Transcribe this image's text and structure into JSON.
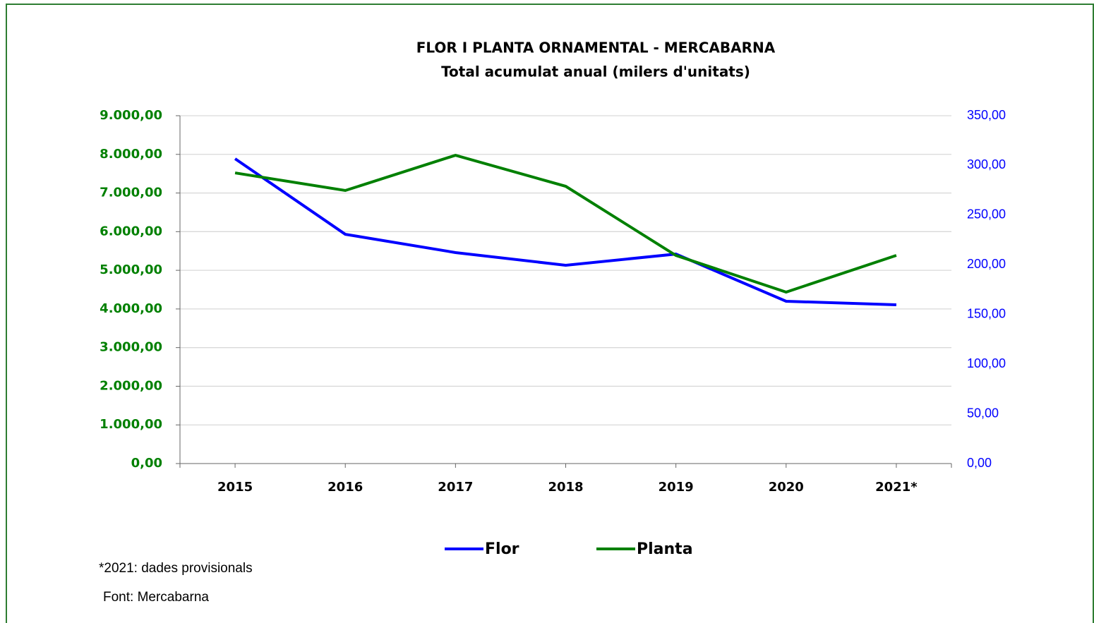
{
  "chart_data": {
    "type": "line",
    "title": "FLOR I PLANTA ORNAMENTAL - MERCABARNA",
    "subtitle": "Total acumulat anual (milers d'unitats)",
    "categories": [
      "2015",
      "2016",
      "2017",
      "2018",
      "2019",
      "2020",
      "2021*"
    ],
    "series": [
      {
        "name": "Flor",
        "color": "#0000ff",
        "axis": "y2",
        "values": [
          306.7,
          230.7,
          212.3,
          199.5,
          210.8,
          163.3,
          159.7
        ]
      },
      {
        "name": "Planta",
        "color": "#008000",
        "values": [
          7520,
          7065,
          7977,
          7174,
          5385,
          4436,
          5385
        ]
      }
    ],
    "ylim": [
      0,
      9000
    ],
    "yticks": [
      {
        "value": 0,
        "label": "0,00"
      },
      {
        "value": 1000,
        "label": "1.000,00"
      },
      {
        "value": 2000,
        "label": "2.000,00"
      },
      {
        "value": 3000,
        "label": "3.000,00"
      },
      {
        "value": 4000,
        "label": "4.000,00"
      },
      {
        "value": 5000,
        "label": "5.000,00"
      },
      {
        "value": 6000,
        "label": "6.000,00"
      },
      {
        "value": 7000,
        "label": "7.000,00"
      },
      {
        "value": 8000,
        "label": "8.000,00"
      },
      {
        "value": 9000,
        "label": "9.000,00"
      }
    ],
    "y2lim": [
      0,
      350
    ],
    "y2ticks": [
      {
        "value": 0,
        "label": "0,00"
      },
      {
        "value": 50,
        "label": "50,00"
      },
      {
        "value": 100,
        "label": "100,00"
      },
      {
        "value": 150,
        "label": "150,00"
      },
      {
        "value": 200,
        "label": "200,00"
      },
      {
        "value": 250,
        "label": "250,00"
      },
      {
        "value": 300,
        "label": "300,00"
      },
      {
        "value": 350,
        "label": "350,00"
      }
    ],
    "grid": true,
    "legend": "bottom",
    "notes": [
      "*2021:  dades provisionals",
      "Font: Mercabarna"
    ]
  }
}
